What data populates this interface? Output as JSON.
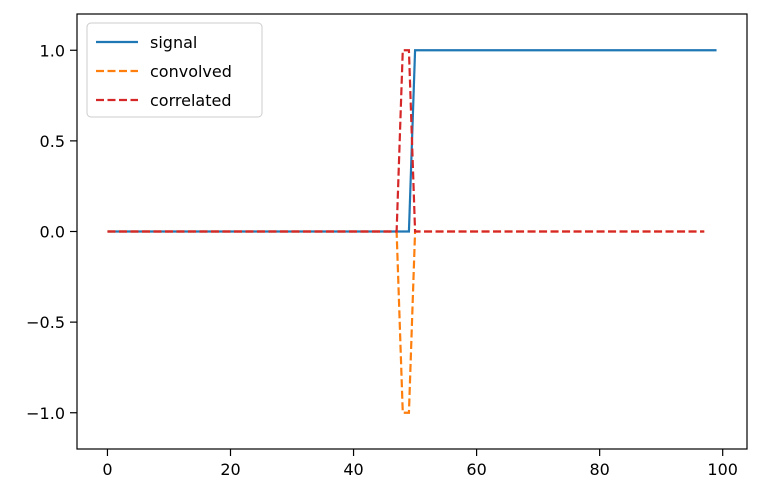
{
  "chart_data": {
    "type": "line",
    "title": "",
    "xlabel": "",
    "ylabel": "",
    "xlim": [
      -4.95,
      103.95
    ],
    "ylim": [
      -1.2,
      1.2
    ],
    "xticks": [
      0,
      20,
      40,
      60,
      80,
      100
    ],
    "xtick_labels": [
      "0",
      "20",
      "40",
      "60",
      "80",
      "100"
    ],
    "yticks": [
      -1.0,
      -0.5,
      0.0,
      0.5,
      1.0
    ],
    "ytick_labels": [
      "−1.0",
      "−0.5",
      "0.0",
      "0.5",
      "1.0"
    ],
    "grid": false,
    "legend": {
      "placement": "upper-left"
    },
    "series": [
      {
        "name": "signal",
        "color": "#1f77b4",
        "dash": "solid",
        "x": [
          0,
          49,
          50,
          99
        ],
        "y": [
          0,
          0,
          1,
          1
        ]
      },
      {
        "name": "convolved",
        "color": "#ff7f0e",
        "dash": "dashed",
        "x": [
          0,
          47,
          48,
          49,
          50,
          97
        ],
        "y": [
          0,
          0,
          -1,
          -1,
          0,
          0
        ]
      },
      {
        "name": "correlated",
        "color": "#d62728",
        "dash": "dashed",
        "x": [
          0,
          47,
          48,
          49,
          50,
          97
        ],
        "y": [
          0,
          0,
          1,
          1,
          0,
          0
        ]
      }
    ]
  }
}
